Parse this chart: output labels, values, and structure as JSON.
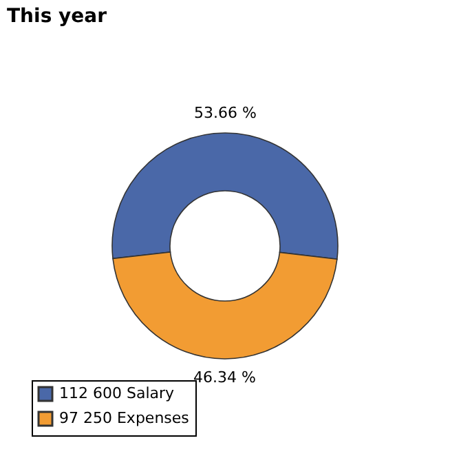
{
  "chart_data": {
    "type": "donut",
    "title": "This year",
    "categories": [
      "112 600 Salary",
      "97 250 Expenses"
    ],
    "values": [
      53.66,
      46.34
    ],
    "colors": [
      "#4a68a8",
      "#f29c33"
    ],
    "value_labels": [
      "53.66 %",
      "46.34 %"
    ],
    "legend": "bottom left"
  }
}
